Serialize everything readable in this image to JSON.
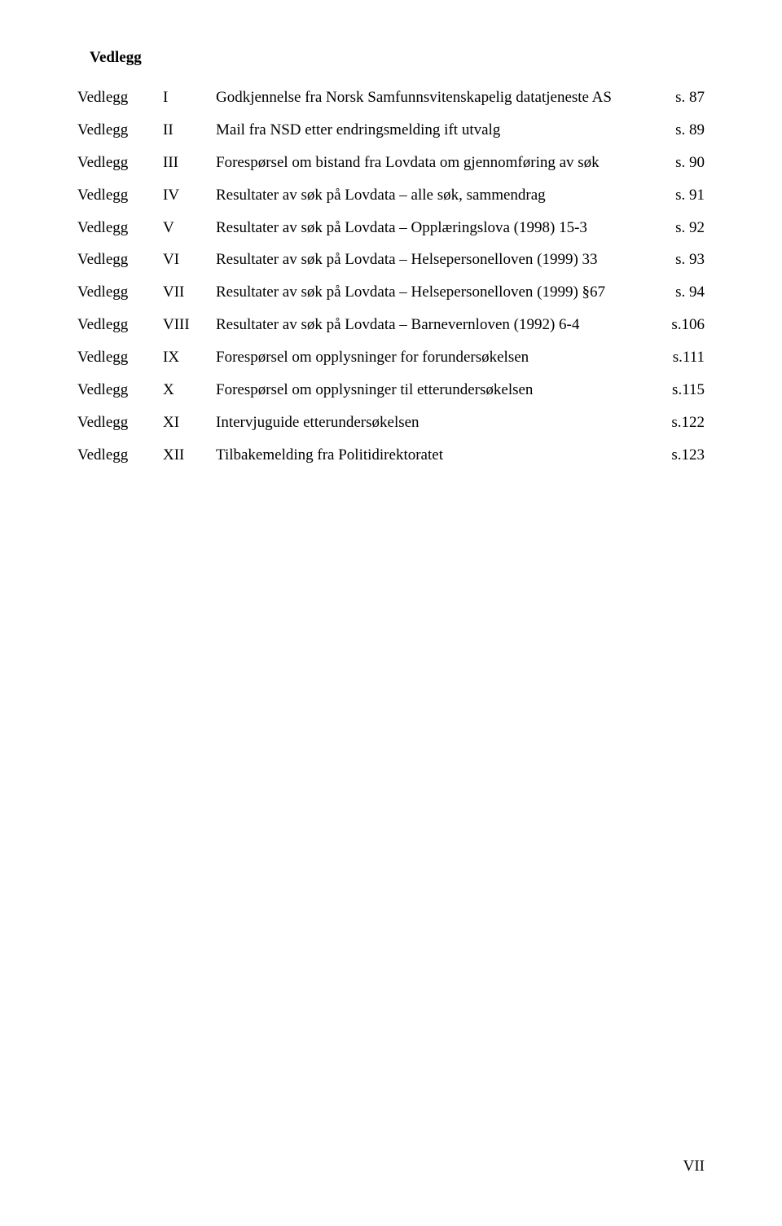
{
  "heading": "Vedlegg",
  "rows": [
    {
      "label": "Vedlegg",
      "num": "I",
      "desc": "Godkjennelse fra Norsk Samfunnsvitenskapelig datatjeneste AS",
      "page": "s. 87"
    },
    {
      "label": "Vedlegg",
      "num": "II",
      "desc": "Mail fra NSD etter endringsmelding ift utvalg",
      "page": "s. 89"
    },
    {
      "label": "Vedlegg",
      "num": "III",
      "desc": "Forespørsel om bistand fra Lovdata om gjennomføring av søk",
      "page": "s. 90"
    },
    {
      "label": "Vedlegg",
      "num": "IV",
      "desc": "Resultater av søk på Lovdata – alle søk, sammendrag",
      "page": "s. 91"
    },
    {
      "label": "Vedlegg",
      "num": "V",
      "desc": "Resultater av søk på Lovdata – Opplæringslova (1998) 15-3",
      "page": "s. 92"
    },
    {
      "label": "Vedlegg",
      "num": "VI",
      "desc": "Resultater av søk på Lovdata – Helsepersonelloven (1999) 33",
      "page": "s. 93"
    },
    {
      "label": "Vedlegg",
      "num": "VII",
      "desc": "Resultater av søk på Lovdata – Helsepersonelloven (1999) §67",
      "page": "s. 94"
    },
    {
      "label": "Vedlegg",
      "num": "VIII",
      "desc": "Resultater av søk på Lovdata – Barnevernloven (1992) 6-4",
      "page": "s.106"
    },
    {
      "label": "Vedlegg",
      "num": "IX",
      "desc": "Forespørsel om opplysninger for forundersøkelsen",
      "page": "s.111"
    },
    {
      "label": "Vedlegg",
      "num": "X",
      "desc": "Forespørsel om opplysninger til etterundersøkelsen",
      "page": "s.115"
    },
    {
      "label": "Vedlegg",
      "num": "XI",
      "desc": "Intervjuguide etterundersøkelsen",
      "page": "s.122"
    },
    {
      "label": "Vedlegg",
      "num": "XII",
      "desc": "Tilbakemelding fra Politidirektoratet",
      "page": "s.123"
    }
  ],
  "footer": "VII"
}
